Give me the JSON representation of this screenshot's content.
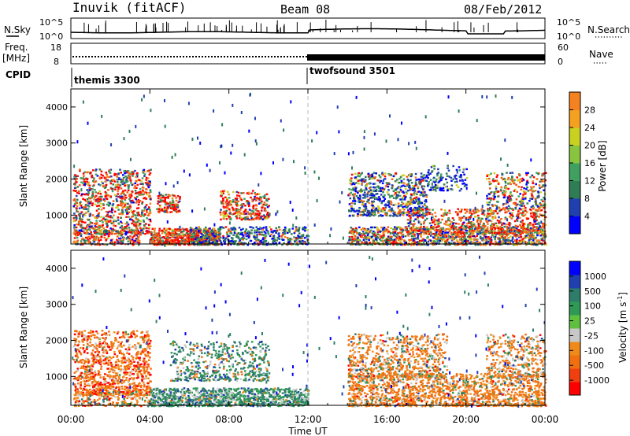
{
  "header": {
    "station": "Inuvik (fitACF)",
    "beam": "Beam 08",
    "date": "08/Feb/2012"
  },
  "noise_panel": {
    "left_label": "N.Sky",
    "right_label": "N.Search",
    "left_ticks": [
      "10^5",
      "10^0"
    ],
    "right_ticks": [
      "10^5",
      "10^0"
    ]
  },
  "freq_panel": {
    "left_label_1": "Freq.",
    "left_label_2": "[MHz]",
    "right_label": "Nave",
    "left_ticks": [
      "18",
      "8"
    ],
    "right_ticks": [
      "60",
      "0"
    ]
  },
  "cpid": {
    "label": "CPID",
    "segments": [
      {
        "name": "themis 3300",
        "start_hour": 0
      },
      {
        "name": "twofsound 3501",
        "start_hour": 12
      }
    ]
  },
  "chart_data": [
    {
      "type": "heatmap",
      "panel": "power",
      "ylabel": "Slant Range [km]",
      "yticks": [
        "1000",
        "2000",
        "3000",
        "4000"
      ],
      "ylim": [
        200,
        4500
      ],
      "xlim_hours": [
        0,
        24
      ],
      "colorbar": {
        "label": "Power [dB]",
        "ticks": [
          "4",
          "8",
          "12",
          "16",
          "20",
          "24",
          "28"
        ],
        "range": [
          0,
          32
        ]
      },
      "series": [
        {
          "hours": [
            0,
            4
          ],
          "range_km": [
            200,
            2300
          ],
          "level": "high"
        },
        {
          "hours": [
            4,
            7.5
          ],
          "range_km": [
            200,
            600
          ],
          "level": "high"
        },
        {
          "hours": [
            7.5,
            10
          ],
          "range_km": [
            900,
            1700
          ],
          "level": "high"
        },
        {
          "hours": [
            14,
            24
          ],
          "range_km": [
            200,
            1000
          ],
          "level": "high"
        },
        {
          "hours": [
            14,
            18
          ],
          "range_km": [
            1000,
            2200
          ],
          "level": "medium"
        },
        {
          "hours": [
            21,
            24
          ],
          "range_km": [
            500,
            2000
          ],
          "level": "high"
        }
      ]
    },
    {
      "type": "heatmap",
      "panel": "velocity",
      "ylabel": "Slant Range [km]",
      "yticks": [
        "1000",
        "2000",
        "3000",
        "4000"
      ],
      "ylim": [
        200,
        4500
      ],
      "xlabel": "Time UT",
      "xticks": [
        "00:00",
        "04:00",
        "08:00",
        "12:00",
        "16:00",
        "20:00",
        "00:00"
      ],
      "xlim_hours": [
        0,
        24
      ],
      "colorbar": {
        "label": "Velocity [m s",
        "label_sup": "-1",
        "label_end": "]",
        "ticks": [
          "1000",
          "500",
          "100",
          "25",
          "-25",
          "-100",
          "-500",
          "-1000"
        ]
      },
      "series": [
        {
          "hours": [
            0,
            4
          ],
          "range_km": [
            400,
            2200
          ],
          "velocity_ms": -300
        },
        {
          "hours": [
            4,
            12
          ],
          "range_km": [
            200,
            700
          ],
          "velocity_ms": 150
        },
        {
          "hours": [
            5,
            10
          ],
          "range_km": [
            900,
            2000
          ],
          "velocity_ms": 100
        },
        {
          "hours": [
            14,
            24
          ],
          "range_km": [
            200,
            2200
          ],
          "velocity_ms": -200
        }
      ]
    }
  ],
  "colors": {
    "power_scale": [
      "#0000ff",
      "#2040b0",
      "#2e7d55",
      "#3fa060",
      "#88c440",
      "#c8d020",
      "#f4a020",
      "#f58220",
      "#f05a10",
      "#e02810",
      "#ff0000"
    ],
    "velocity_scale": [
      "#0000ff",
      "#2040b0",
      "#2e7d6a",
      "#2e9a55",
      "#5fc040",
      "#c8c8c8",
      "#c8c8c8",
      "#f08a1a",
      "#f07010",
      "#f04010",
      "#ff0000"
    ]
  }
}
